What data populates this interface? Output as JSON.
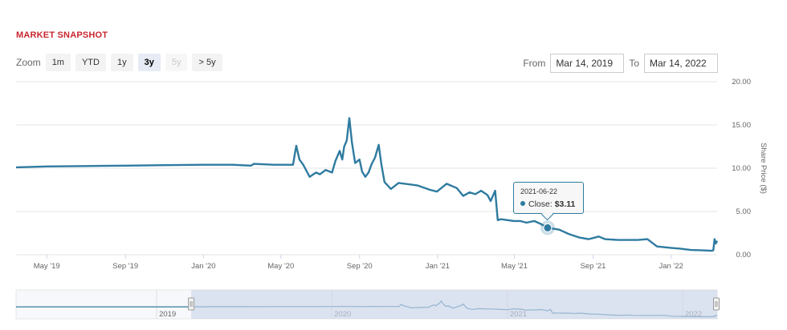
{
  "title": "MARKET SNAPSHOT",
  "zoom": {
    "label": "Zoom",
    "buttons": [
      {
        "label": "1m",
        "state": "normal"
      },
      {
        "label": "YTD",
        "state": "normal"
      },
      {
        "label": "1y",
        "state": "normal"
      },
      {
        "label": "3y",
        "state": "active"
      },
      {
        "label": "5y",
        "state": "disabled"
      },
      {
        "label": "> 5y",
        "state": "normal"
      }
    ]
  },
  "range": {
    "from_label": "From",
    "from_value": "Mar 14, 2019",
    "to_label": "To",
    "to_value": "Mar 14, 2022"
  },
  "tooltip": {
    "date": "2021-06-22",
    "label": "Close:",
    "value": "$3.11"
  },
  "colors": {
    "line": "#2f7ba0",
    "title": "#c8262e",
    "navigator_mask": "#cdd5ea",
    "grid": "#e6e6e6"
  },
  "chart_data": {
    "type": "line",
    "title": "",
    "ylabel": "Share Price ($)",
    "ylim": [
      0,
      20
    ],
    "yticks": [
      "0.00",
      "5.00",
      "10.00",
      "15.00",
      "20.00"
    ],
    "xticks": [
      "May '19",
      "Sep '19",
      "Jan '20",
      "May '20",
      "Sep '20",
      "Jan '21",
      "May '21",
      "Sep '21",
      "Jan '22"
    ],
    "navigator_labels": [
      "2019",
      "2020",
      "2021",
      "2022"
    ],
    "grid": true,
    "series": [
      {
        "x": [
          "2019-03-14",
          "2019-05-01",
          "2019-07-01",
          "2019-09-01",
          "2019-11-01",
          "2020-01-01",
          "2020-02-15",
          "2020-03-15",
          "2020-03-20",
          "2020-04-20",
          "2020-05-01",
          "2020-05-20",
          "2020-05-25",
          "2020-05-30",
          "2020-06-05",
          "2020-06-15",
          "2020-06-25",
          "2020-07-01",
          "2020-07-10",
          "2020-07-20",
          "2020-07-25",
          "2020-08-01",
          "2020-08-05",
          "2020-08-08",
          "2020-08-12",
          "2020-08-16",
          "2020-08-20",
          "2020-08-25",
          "2020-09-01",
          "2020-09-05",
          "2020-09-10",
          "2020-09-15",
          "2020-09-20",
          "2020-09-25",
          "2020-10-01",
          "2020-10-05",
          "2020-10-10",
          "2020-10-20",
          "2020-11-01",
          "2020-12-01",
          "2020-12-20",
          "2020-12-31",
          "2021-01-15",
          "2021-01-31",
          "2021-02-10",
          "2021-02-20",
          "2021-03-01",
          "2021-03-10",
          "2021-03-20",
          "2021-03-25",
          "2021-04-01",
          "2021-04-05",
          "2021-04-10",
          "2021-04-30",
          "2021-05-10",
          "2021-05-20",
          "2021-06-01",
          "2021-06-10",
          "2021-06-22",
          "2021-07-10",
          "2021-07-25",
          "2021-08-10",
          "2021-08-25",
          "2021-09-10",
          "2021-09-20",
          "2021-10-10",
          "2021-10-25",
          "2021-11-10",
          "2021-11-25",
          "2021-12-10",
          "2021-12-31",
          "2022-01-15",
          "2022-02-01",
          "2022-02-20",
          "2022-03-05",
          "2022-03-08",
          "2022-03-10",
          "2022-03-12",
          "2022-03-14"
        ],
        "y": [
          10.1,
          10.2,
          10.25,
          10.3,
          10.35,
          10.4,
          10.4,
          10.3,
          10.5,
          10.4,
          10.4,
          10.4,
          12.6,
          11.0,
          10.4,
          9.0,
          9.5,
          9.3,
          9.8,
          9.5,
          10.8,
          12.0,
          11.0,
          12.5,
          13.2,
          15.8,
          13.0,
          10.6,
          11.0,
          9.6,
          9.0,
          9.5,
          10.5,
          11.2,
          12.7,
          10.5,
          8.4,
          7.6,
          8.3,
          8.0,
          7.5,
          7.3,
          8.2,
          7.7,
          6.8,
          7.2,
          7.0,
          7.4,
          6.9,
          6.2,
          7.4,
          4.0,
          4.1,
          3.9,
          3.9,
          3.7,
          3.9,
          3.6,
          3.11,
          2.9,
          2.4,
          2.0,
          1.8,
          2.1,
          1.8,
          1.7,
          1.7,
          1.7,
          1.8,
          0.95,
          0.8,
          0.7,
          0.55,
          0.5,
          0.45,
          0.5,
          1.8,
          1.3,
          1.6
        ]
      }
    ]
  }
}
